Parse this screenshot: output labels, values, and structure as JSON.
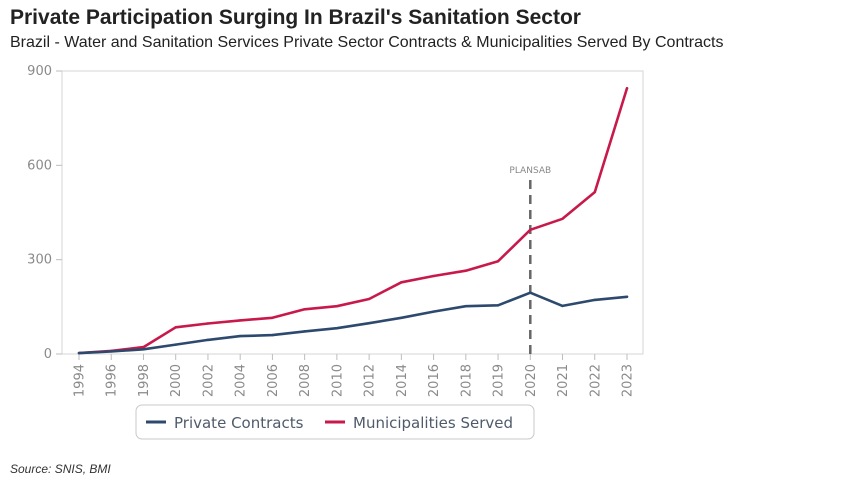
{
  "header": {
    "title": "Private Participation Surging In Brazil's Sanitation Sector",
    "subtitle": "Brazil - Water and Sanitation Services Private Sector Contracts & Municipalities Served By Contracts"
  },
  "footer": {
    "source": "Source: SNIS, BMI"
  },
  "colors": {
    "private_contracts": "#2d4a6e",
    "municipalities_served": "#c8194b",
    "annotation": "#666666"
  },
  "chart_data": {
    "type": "line",
    "title": "Private Participation Surging In Brazil's Sanitation Sector",
    "subtitle": "Brazil - Water and Sanitation Services Private Sector Contracts & Municipalities Served By Contracts",
    "categories": [
      "1994",
      "1996",
      "1998",
      "2000",
      "2002",
      "2004",
      "2006",
      "2008",
      "2010",
      "2012",
      "2014",
      "2016",
      "2018",
      "2019",
      "2020",
      "2021",
      "2022",
      "2023"
    ],
    "series": [
      {
        "name": "Private Contracts",
        "color": "#2d4a6e",
        "values": [
          3,
          8,
          15,
          30,
          45,
          57,
          60,
          72,
          82,
          98,
          115,
          135,
          152,
          155,
          195,
          153,
          172,
          182
        ]
      },
      {
        "name": "Municipalities Served",
        "color": "#c8194b",
        "values": [
          3,
          10,
          22,
          85,
          97,
          107,
          115,
          142,
          152,
          175,
          228,
          248,
          265,
          295,
          395,
          430,
          515,
          845
        ]
      }
    ],
    "ylim": [
      0,
      900
    ],
    "yticks": [
      0,
      300,
      600,
      900
    ],
    "annotation": {
      "label": "PLANSAB",
      "x": "2020"
    },
    "grid": false,
    "legend_position": "bottom"
  }
}
